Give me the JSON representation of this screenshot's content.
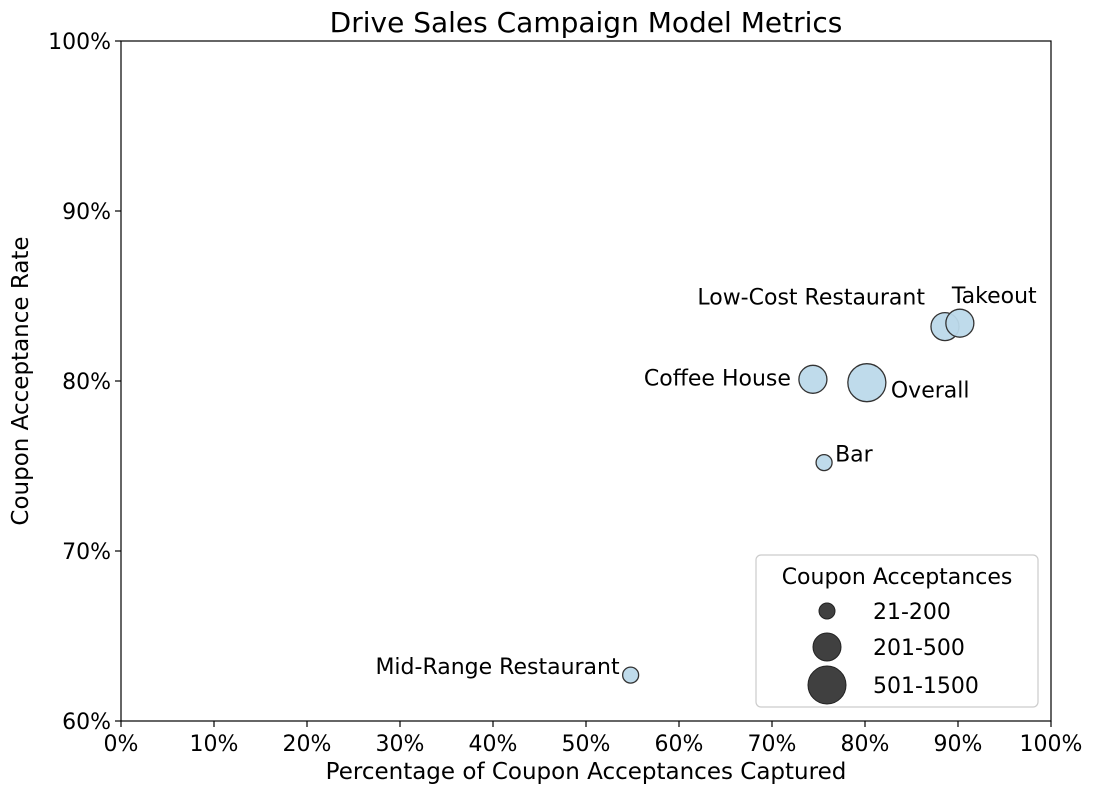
{
  "chart_data": {
    "type": "scatter",
    "title": "Drive Sales Campaign Model Metrics",
    "xlabel": "Percentage of Coupon Acceptances Captured",
    "ylabel": "Coupon Acceptance Rate",
    "xlim": [
      0,
      100
    ],
    "ylim": [
      60,
      100
    ],
    "x_ticks": [
      0,
      10,
      20,
      30,
      40,
      50,
      60,
      70,
      80,
      90,
      100
    ],
    "y_ticks": [
      60,
      70,
      80,
      90,
      100
    ],
    "x_tick_labels": [
      "0%",
      "10%",
      "20%",
      "30%",
      "40%",
      "50%",
      "60%",
      "70%",
      "80%",
      "90%",
      "100%"
    ],
    "y_tick_labels": [
      "60%",
      "70%",
      "80%",
      "90%",
      "100%"
    ],
    "grid": false,
    "marker_color": "#bcd9ea",
    "marker_edge_color": "#333333",
    "points": [
      {
        "label": "Low-Cost Restaurant",
        "x": 88.6,
        "y": 83.2,
        "size_group": "201-500"
      },
      {
        "label": "Takeout",
        "x": 90.2,
        "y": 83.4,
        "size_group": "201-500"
      },
      {
        "label": "Coffee House",
        "x": 74.4,
        "y": 80.1,
        "size_group": "201-500"
      },
      {
        "label": "Overall",
        "x": 80.2,
        "y": 79.9,
        "size_group": "501-1500"
      },
      {
        "label": "Bar",
        "x": 75.6,
        "y": 75.2,
        "size_group": "21-200"
      },
      {
        "label": "Mid-Range Restaurant",
        "x": 54.8,
        "y": 62.7,
        "size_group": "21-200"
      }
    ],
    "legend": {
      "title": "Coupon Acceptances",
      "placement": "lower-right",
      "marker_color": "#404040",
      "entries": [
        {
          "label": "21-200",
          "size_group": "21-200"
        },
        {
          "label": "201-500",
          "size_group": "201-500"
        },
        {
          "label": "501-1500",
          "size_group": "501-1500"
        }
      ]
    }
  }
}
